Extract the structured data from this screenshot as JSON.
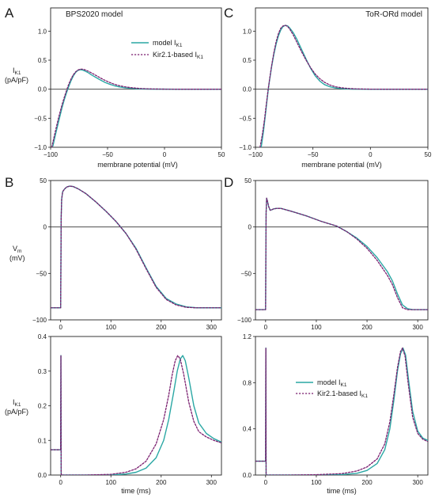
{
  "labels": {
    "letters": [
      "A",
      "B",
      "C",
      "D"
    ],
    "title_A": "BPS2020 model",
    "title_C": "ToR-ORd model",
    "ylabel_IK1": "I",
    "ylabel_IK1_sub": "K1",
    "ylabel_IK1_unit": "(pA/pF)",
    "ylabel_Vm": "V",
    "ylabel_Vm_sub": "m",
    "ylabel_Vm_unit": "(mV)",
    "xlabel_potential": "membrane potential (mV)",
    "xlabel_time": "time (ms)"
  },
  "legend": {
    "model": "model I",
    "kir": "Kir2.1-based I",
    "sub": "K1"
  },
  "colors": {
    "model": "#2aa7a4",
    "kir": "#7a1f6f",
    "axis": "#222222",
    "zero": "#333333"
  },
  "chart_data": [
    {
      "id": "A",
      "type": "line",
      "title": "BPS2020 model",
      "xlabel": "membrane potential (mV)",
      "ylabel": "IK1 (pA/pF)",
      "xlim": [
        -100,
        50
      ],
      "ylim": [
        -1.0,
        1.4
      ],
      "xticks": [
        -100,
        -50,
        0,
        50
      ],
      "yticks": [
        -1.0,
        -0.5,
        0.0,
        0.5,
        1.0
      ],
      "zero_line": true,
      "series": [
        {
          "name": "model IK1",
          "x": [
            -98,
            -95,
            -92,
            -90,
            -88,
            -86,
            -84,
            -82,
            -80,
            -78,
            -76,
            -74,
            -72,
            -70,
            -67,
            -64,
            -60,
            -56,
            -52,
            -48,
            -44,
            -40,
            -35,
            -30,
            -25,
            -20,
            -15,
            -10,
            0,
            10,
            20,
            30,
            40,
            50
          ],
          "y": [
            -0.98,
            -0.72,
            -0.48,
            -0.32,
            -0.18,
            -0.06,
            0.05,
            0.15,
            0.23,
            0.29,
            0.325,
            0.335,
            0.33,
            0.315,
            0.285,
            0.245,
            0.2,
            0.155,
            0.115,
            0.085,
            0.06,
            0.04,
            0.025,
            0.015,
            0.009,
            0.005,
            0.003,
            0.002,
            0.001,
            0,
            0,
            0,
            0,
            0
          ]
        },
        {
          "name": "Kir2.1-based IK1",
          "x": [
            -99,
            -96,
            -93,
            -90,
            -88,
            -86,
            -84,
            -82,
            -80,
            -78,
            -76,
            -74,
            -72,
            -70,
            -67,
            -64,
            -60,
            -56,
            -52,
            -48,
            -44,
            -40,
            -35,
            -30,
            -25,
            -20,
            -15,
            -10,
            0,
            10,
            20,
            30,
            40,
            50
          ],
          "y": [
            -1.0,
            -0.74,
            -0.49,
            -0.27,
            -0.14,
            -0.02,
            0.09,
            0.18,
            0.25,
            0.3,
            0.33,
            0.345,
            0.345,
            0.335,
            0.31,
            0.28,
            0.235,
            0.19,
            0.15,
            0.115,
            0.085,
            0.062,
            0.042,
            0.028,
            0.018,
            0.011,
            0.007,
            0.004,
            0.001,
            0,
            0,
            0,
            0,
            0
          ]
        }
      ]
    },
    {
      "id": "C",
      "type": "line",
      "title": "ToR-ORd model",
      "xlabel": "membrane potential (mV)",
      "ylabel": "IK1 (pA/pF)",
      "xlim": [
        -100,
        50
      ],
      "ylim": [
        -1.0,
        1.4
      ],
      "xticks": [
        -100,
        -50,
        0,
        50
      ],
      "yticks": [
        -1.0,
        -0.5,
        0.0,
        0.5,
        1.0
      ],
      "zero_line": true,
      "series": [
        {
          "name": "model IK1",
          "x": [
            -95,
            -93,
            -91,
            -90,
            -89,
            -88,
            -86,
            -84,
            -82,
            -80,
            -78,
            -76,
            -74,
            -72,
            -70,
            -67,
            -64,
            -60,
            -56,
            -52,
            -48,
            -44,
            -40,
            -35,
            -30,
            -25,
            -20,
            -15,
            -10,
            0,
            10,
            20,
            30,
            40,
            50
          ],
          "y": [
            -1.0,
            -0.72,
            -0.38,
            -0.2,
            -0.03,
            0.12,
            0.38,
            0.6,
            0.78,
            0.92,
            1.02,
            1.08,
            1.1,
            1.09,
            1.05,
            0.97,
            0.86,
            0.69,
            0.52,
            0.36,
            0.23,
            0.14,
            0.08,
            0.04,
            0.02,
            0.01,
            0.005,
            0.002,
            0.001,
            0,
            0,
            0,
            0,
            0,
            0
          ]
        },
        {
          "name": "Kir2.1-based IK1",
          "x": [
            -96,
            -94,
            -92,
            -91,
            -90,
            -89,
            -88,
            -86,
            -84,
            -82,
            -80,
            -78,
            -76,
            -74,
            -72,
            -70,
            -67,
            -64,
            -60,
            -56,
            -52,
            -48,
            -44,
            -40,
            -35,
            -30,
            -25,
            -20,
            -15,
            -10,
            0,
            10,
            20,
            30,
            40,
            50
          ],
          "y": [
            -1.0,
            -0.78,
            -0.5,
            -0.33,
            -0.17,
            -0.01,
            0.13,
            0.4,
            0.63,
            0.82,
            0.96,
            1.05,
            1.09,
            1.1,
            1.08,
            1.03,
            0.93,
            0.81,
            0.65,
            0.5,
            0.37,
            0.26,
            0.18,
            0.12,
            0.07,
            0.04,
            0.024,
            0.014,
            0.008,
            0.004,
            0.001,
            0,
            0,
            0,
            0,
            0
          ]
        }
      ]
    },
    {
      "id": "B",
      "type": "line",
      "ylabel": "Vm (mV)",
      "xlim": [
        -20,
        320
      ],
      "ylim": [
        -100,
        50
      ],
      "xticks": [
        0,
        100,
        200,
        300
      ],
      "yticks": [
        -100,
        -50,
        0,
        50
      ],
      "zero_line": true,
      "series": [
        {
          "name": "model IK1",
          "x": [
            -20,
            -1,
            0,
            0.5,
            1,
            2,
            4,
            8,
            12,
            18,
            25,
            35,
            50,
            70,
            90,
            110,
            130,
            150,
            170,
            190,
            210,
            230,
            250,
            270,
            290,
            320
          ],
          "y": [
            -87,
            -87,
            -87,
            -40,
            10,
            30,
            38,
            41,
            43,
            44,
            43.5,
            41,
            36,
            27,
            17,
            6,
            -7,
            -23,
            -44,
            -64,
            -77,
            -83,
            -86,
            -87,
            -87,
            -87
          ]
        },
        {
          "name": "Kir2.1-based IK1",
          "x": [
            -20,
            -1,
            0,
            0.5,
            1,
            2,
            4,
            8,
            12,
            18,
            25,
            35,
            50,
            70,
            90,
            110,
            130,
            150,
            170,
            190,
            210,
            230,
            250,
            270,
            290,
            320
          ],
          "y": [
            -87,
            -87,
            -87,
            -40,
            10,
            30,
            38,
            41,
            43,
            44,
            43.5,
            41,
            36,
            27,
            17,
            6,
            -7,
            -24,
            -45,
            -65,
            -78,
            -84,
            -86.5,
            -87,
            -87,
            -87
          ]
        }
      ]
    },
    {
      "id": "D",
      "type": "line",
      "ylabel": "Vm (mV)",
      "xlim": [
        -20,
        320
      ],
      "ylim": [
        -100,
        50
      ],
      "xticks": [
        0,
        100,
        200,
        300
      ],
      "yticks": [
        -100,
        -50,
        0,
        50
      ],
      "zero_line": true,
      "series": [
        {
          "name": "model IK1",
          "x": [
            -20,
            -1,
            0,
            0.5,
            1,
            2,
            4,
            6,
            9,
            12,
            16,
            22,
            30,
            50,
            80,
            110,
            140,
            160,
            180,
            200,
            220,
            240,
            250,
            260,
            270,
            280,
            290,
            300,
            320
          ],
          "y": [
            -89,
            -89,
            -89,
            -30,
            15,
            31,
            27,
            22,
            18,
            18.5,
            19.5,
            20,
            20,
            17,
            12,
            6,
            1,
            -5,
            -12,
            -21,
            -33,
            -48,
            -58,
            -72,
            -84,
            -88,
            -89,
            -89,
            -89
          ]
        },
        {
          "name": "Kir2.1-based IK1",
          "x": [
            -20,
            -1,
            0,
            0.5,
            1,
            2,
            4,
            6,
            9,
            12,
            16,
            22,
            30,
            50,
            80,
            110,
            140,
            160,
            180,
            200,
            220,
            240,
            250,
            260,
            270,
            280,
            290,
            300,
            320
          ],
          "y": [
            -89,
            -89,
            -89,
            -30,
            15,
            31,
            27,
            22,
            18,
            18.5,
            19.5,
            20,
            20,
            17,
            12,
            6,
            1,
            -5,
            -13,
            -23,
            -36,
            -52,
            -62,
            -76,
            -87,
            -89,
            -89,
            -89,
            -89
          ]
        }
      ]
    },
    {
      "id": "B2",
      "type": "line",
      "xlabel": "time (ms)",
      "ylabel": "IK1 (pA/pF)",
      "xlim": [
        -20,
        320
      ],
      "ylim": [
        0,
        0.4
      ],
      "xticks": [
        0,
        100,
        200,
        300
      ],
      "yticks": [
        0.0,
        0.1,
        0.2,
        0.3,
        0.4
      ],
      "series": [
        {
          "name": "model IK1",
          "x": [
            -20,
            -1,
            0,
            0.5,
            1,
            1.5,
            3,
            50,
            100,
            130,
            150,
            170,
            190,
            205,
            215,
            225,
            232,
            238,
            243,
            248,
            255,
            265,
            275,
            290,
            305,
            320
          ],
          "y": [
            0.073,
            0.073,
            0.073,
            0.345,
            0.005,
            0.0,
            0.0,
            0.0,
            0.0,
            0.003,
            0.008,
            0.02,
            0.05,
            0.1,
            0.16,
            0.24,
            0.3,
            0.335,
            0.345,
            0.33,
            0.28,
            0.2,
            0.15,
            0.12,
            0.105,
            0.095
          ]
        },
        {
          "name": "Kir2.1-based IK1",
          "x": [
            -20,
            -1,
            0,
            0.5,
            1,
            1.5,
            3,
            50,
            100,
            130,
            150,
            170,
            190,
            205,
            215,
            222,
            228,
            233,
            238,
            245,
            255,
            265,
            275,
            290,
            305,
            320
          ],
          "y": [
            0.073,
            0.073,
            0.073,
            0.345,
            0.005,
            0.0,
            0.0,
            0.0,
            0.002,
            0.008,
            0.018,
            0.04,
            0.09,
            0.16,
            0.23,
            0.29,
            0.33,
            0.345,
            0.335,
            0.29,
            0.21,
            0.155,
            0.125,
            0.11,
            0.1,
            0.093
          ]
        }
      ]
    },
    {
      "id": "D2",
      "type": "line",
      "xlabel": "time (ms)",
      "xlim": [
        -20,
        320
      ],
      "ylim": [
        0,
        1.2
      ],
      "xticks": [
        0,
        100,
        200,
        300
      ],
      "yticks": [
        0.0,
        0.4,
        0.8,
        1.2
      ],
      "series": [
        {
          "name": "model IK1",
          "x": [
            -20,
            -1,
            0,
            0.5,
            1,
            1.5,
            3,
            50,
            100,
            150,
            180,
            200,
            220,
            235,
            245,
            253,
            260,
            266,
            271,
            276,
            282,
            290,
            300,
            310,
            320
          ],
          "y": [
            0.12,
            0.12,
            0.12,
            1.1,
            0.005,
            0.0,
            0.0,
            0.0,
            0.0,
            0.004,
            0.015,
            0.04,
            0.1,
            0.22,
            0.4,
            0.65,
            0.9,
            1.05,
            1.1,
            1.04,
            0.82,
            0.55,
            0.38,
            0.32,
            0.3
          ]
        },
        {
          "name": "Kir2.1-based IK1",
          "x": [
            -20,
            -1,
            0,
            0.5,
            1,
            1.5,
            3,
            50,
            100,
            150,
            180,
            200,
            220,
            235,
            245,
            253,
            260,
            266,
            270,
            275,
            281,
            290,
            300,
            310,
            320
          ],
          "y": [
            0.12,
            0.12,
            0.12,
            1.1,
            0.005,
            0.0,
            0.0,
            0.0,
            0.003,
            0.012,
            0.035,
            0.07,
            0.14,
            0.27,
            0.46,
            0.7,
            0.93,
            1.07,
            1.1,
            1.03,
            0.8,
            0.5,
            0.36,
            0.31,
            0.29
          ]
        }
      ]
    }
  ]
}
